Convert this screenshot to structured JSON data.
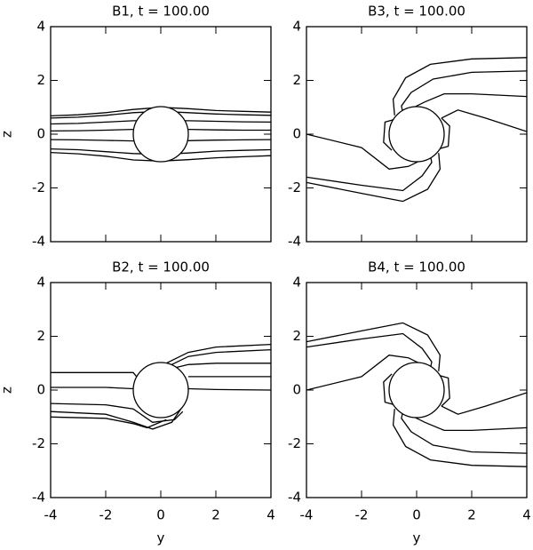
{
  "chart_data": [
    {
      "type": "line",
      "title": "B1, t = 100.00",
      "ylabel": "z",
      "color": "#000000",
      "xlim": [
        -4,
        4
      ],
      "ylim": [
        -4,
        4
      ],
      "xticks": [
        -4,
        -2,
        0,
        2,
        4
      ],
      "yticks": [
        -4,
        -2,
        0,
        2,
        4
      ],
      "xtick_labels": false,
      "center": [
        0,
        0
      ],
      "radius": 1,
      "series": [
        {
          "x": [
            -4,
            -3,
            -2,
            -1,
            0,
            1,
            2,
            3,
            4
          ],
          "values": [
            0.68,
            0.72,
            0.8,
            0.92,
            1.0,
            0.95,
            0.88,
            0.85,
            0.82
          ]
        },
        {
          "x": [
            -4,
            -3,
            -2,
            -1,
            0,
            1,
            2,
            3,
            4
          ],
          "values": [
            0.6,
            0.63,
            0.7,
            0.8,
            0.85,
            0.8,
            0.75,
            0.72,
            0.7
          ]
        },
        {
          "x": [
            -4,
            -3,
            -2,
            -1,
            0,
            1,
            2,
            3,
            4
          ],
          "values": [
            0.38,
            0.4,
            0.45,
            0.5,
            0.5,
            0.5,
            0.48,
            0.46,
            0.45
          ]
        },
        {
          "x": [
            -4,
            -3,
            -2,
            -1,
            0,
            1,
            2,
            3,
            4
          ],
          "values": [
            0.12,
            0.13,
            0.15,
            0.18,
            0.2,
            0.18,
            0.16,
            0.15,
            0.15
          ]
        },
        {
          "x": [
            -4,
            -3,
            -2,
            -1,
            0,
            1,
            2,
            3,
            4
          ],
          "values": [
            -0.2,
            -0.21,
            -0.23,
            -0.25,
            -0.25,
            -0.24,
            -0.22,
            -0.21,
            -0.2
          ]
        },
        {
          "x": [
            -4,
            -3,
            -2,
            -1,
            0,
            1,
            2,
            3,
            4
          ],
          "values": [
            -0.55,
            -0.58,
            -0.65,
            -0.72,
            -0.75,
            -0.7,
            -0.63,
            -0.6,
            -0.58
          ]
        },
        {
          "x": [
            -4,
            -3,
            -2,
            -1,
            0,
            1,
            2,
            3,
            4
          ],
          "values": [
            -0.68,
            -0.73,
            -0.82,
            -0.96,
            -1.0,
            -0.95,
            -0.88,
            -0.84,
            -0.8
          ]
        }
      ]
    },
    {
      "type": "line",
      "title": "B3, t = 100.00",
      "color": "#000000",
      "xlim": [
        -4,
        4
      ],
      "ylim": [
        -4,
        4
      ],
      "xticks": [
        -4,
        -2,
        0,
        2,
        4
      ],
      "yticks": [
        -4,
        -2,
        0,
        2,
        4
      ],
      "xtick_labels": false,
      "center": [
        0,
        0
      ],
      "radius": 1,
      "series": [
        {
          "x": [
            4,
            2,
            0.5,
            -0.4,
            -0.85,
            -0.8
          ],
          "values": [
            2.85,
            2.8,
            2.6,
            2.1,
            1.3,
            0.7
          ]
        },
        {
          "x": [
            4,
            2,
            0.6,
            -0.2,
            -0.55,
            -0.5
          ],
          "values": [
            2.35,
            2.3,
            2.05,
            1.55,
            1.05,
            0.8
          ]
        },
        {
          "x": [
            4,
            2,
            1,
            0.3,
            -0.2
          ],
          "values": [
            1.4,
            1.5,
            1.5,
            1.2,
            0.95
          ]
        },
        {
          "x": [
            4,
            2.5,
            1.5,
            0.9
          ],
          "values": [
            0.1,
            0.6,
            0.9,
            0.6
          ]
        },
        {
          "x": [
            -4,
            -2,
            -0.5,
            0.4,
            0.85,
            0.8
          ],
          "values": [
            -1.8,
            -2.2,
            -2.5,
            -2.05,
            -1.3,
            -0.7
          ]
        },
        {
          "x": [
            -4,
            -2,
            -0.5,
            0.2,
            0.55,
            0.5
          ],
          "values": [
            -1.6,
            -1.9,
            -2.1,
            -1.55,
            -1.05,
            -0.8
          ]
        },
        {
          "x": [
            -4,
            -2,
            -1,
            -0.3,
            0.2
          ],
          "values": [
            0,
            -0.5,
            -1.3,
            -1.2,
            -0.95
          ]
        },
        {
          "x": [
            -0.8,
            -1.15,
            -1.2,
            -0.9
          ],
          "values": [
            0.55,
            0.45,
            -0.3,
            -0.6
          ]
        },
        {
          "x": [
            0.8,
            1.15,
            1.2,
            0.9
          ],
          "values": [
            -0.55,
            -0.45,
            0.3,
            0.6
          ]
        }
      ]
    },
    {
      "type": "line",
      "title": "B2, t = 100.00",
      "xlabel": "y",
      "ylabel": "z",
      "color": "#000000",
      "xlim": [
        -4,
        4
      ],
      "ylim": [
        -4,
        4
      ],
      "xticks": [
        -4,
        -2,
        0,
        2,
        4
      ],
      "yticks": [
        -4,
        -2,
        0,
        2,
        4
      ],
      "xtick_labels": true,
      "center": [
        0,
        0
      ],
      "radius": 1,
      "series": [
        {
          "x": [
            4,
            2,
            1,
            0.4,
            0
          ],
          "values": [
            1.7,
            1.6,
            1.4,
            1.1,
            0.9
          ]
        },
        {
          "x": [
            4,
            2,
            1,
            0.4,
            0
          ],
          "values": [
            1.5,
            1.4,
            1.25,
            0.95,
            0.8
          ]
        },
        {
          "x": [
            4,
            2,
            1,
            0.4
          ],
          "values": [
            1.0,
            1.0,
            0.95,
            0.8
          ]
        },
        {
          "x": [
            4,
            2,
            1
          ],
          "values": [
            0.5,
            0.5,
            0.5
          ]
        },
        {
          "x": [
            4,
            2,
            1
          ],
          "values": [
            0,
            0.02,
            0.05
          ]
        },
        {
          "x": [
            -4,
            -2,
            -1,
            -0.8,
            -0.5
          ],
          "values": [
            0.65,
            0.65,
            0.65,
            0.4,
            0.2
          ]
        },
        {
          "x": [
            -4,
            -2,
            -1
          ],
          "values": [
            0.1,
            0.1,
            0.05
          ]
        },
        {
          "x": [
            -4,
            -2,
            -1,
            -0.3,
            0.5,
            0.8
          ],
          "values": [
            -0.5,
            -0.55,
            -0.7,
            -1.2,
            -1.1,
            -0.8
          ]
        },
        {
          "x": [
            -4,
            -2,
            -1,
            -0.3,
            0.4,
            0.8
          ],
          "values": [
            -0.8,
            -0.9,
            -1.2,
            -1.45,
            -1.2,
            -0.6
          ]
        },
        {
          "x": [
            -4,
            -2,
            -1,
            -0.5,
            0.2
          ],
          "values": [
            -1.0,
            -1.05,
            -1.25,
            -1.4,
            -1.1
          ]
        }
      ]
    },
    {
      "type": "line",
      "title": "B4, t = 100.00",
      "xlabel": "y",
      "color": "#000000",
      "xlim": [
        -4,
        4
      ],
      "ylim": [
        -4,
        4
      ],
      "xticks": [
        -4,
        -2,
        0,
        2,
        4
      ],
      "yticks": [
        -4,
        -2,
        0,
        2,
        4
      ],
      "xtick_labels": true,
      "center": [
        0,
        0
      ],
      "radius": 1,
      "series": [
        {
          "x": [
            4,
            2,
            0.5,
            -0.4,
            -0.85,
            -0.8
          ],
          "values": [
            -2.85,
            -2.8,
            -2.6,
            -2.1,
            -1.3,
            -0.7
          ]
        },
        {
          "x": [
            4,
            2,
            0.6,
            -0.2,
            -0.55,
            -0.5
          ],
          "values": [
            -2.35,
            -2.3,
            -2.05,
            -1.55,
            -1.05,
            -0.8
          ]
        },
        {
          "x": [
            4,
            2,
            1,
            0.3,
            -0.2
          ],
          "values": [
            -1.4,
            -1.5,
            -1.5,
            -1.2,
            -0.95
          ]
        },
        {
          "x": [
            4,
            2.5,
            1.5,
            0.9
          ],
          "values": [
            -0.1,
            -0.6,
            -0.9,
            -0.6
          ]
        },
        {
          "x": [
            -4,
            -2,
            -0.5,
            0.4,
            0.85,
            0.8
          ],
          "values": [
            1.8,
            2.2,
            2.5,
            2.05,
            1.3,
            0.7
          ]
        },
        {
          "x": [
            -4,
            -2,
            -0.5,
            0.2,
            0.55,
            0.5
          ],
          "values": [
            1.6,
            1.9,
            2.1,
            1.55,
            1.05,
            0.8
          ]
        },
        {
          "x": [
            -4,
            -2,
            -1,
            -0.3,
            0.2
          ],
          "values": [
            0,
            0.5,
            1.3,
            1.2,
            0.95
          ]
        },
        {
          "x": [
            -0.8,
            -1.15,
            -1.2,
            -0.9
          ],
          "values": [
            -0.55,
            -0.45,
            0.3,
            0.6
          ]
        },
        {
          "x": [
            0.8,
            1.15,
            1.2,
            0.9
          ],
          "values": [
            0.55,
            0.45,
            -0.3,
            -0.6
          ]
        }
      ]
    }
  ]
}
